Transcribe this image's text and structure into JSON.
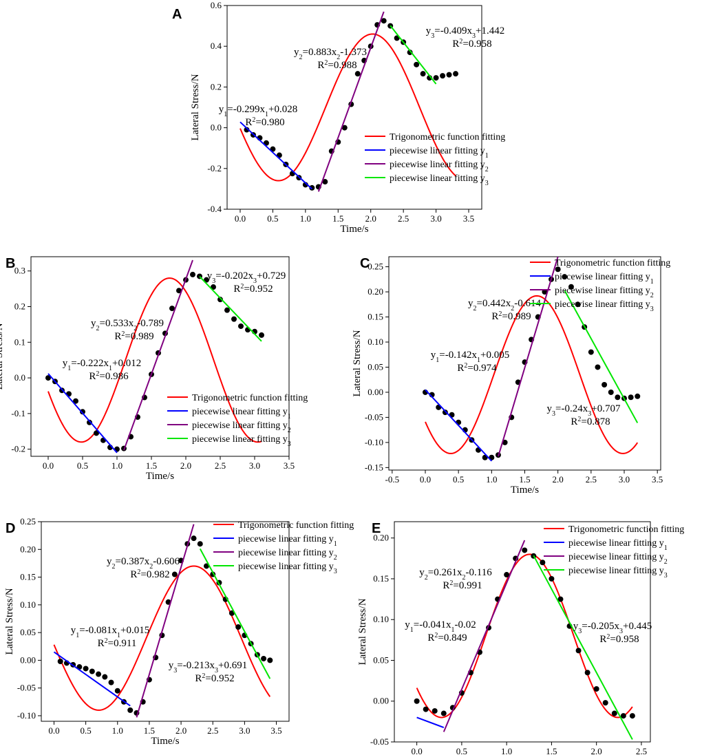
{
  "figure": {
    "x_axis_label": "Time/s",
    "y_axis_label": "Lateral Stress/N",
    "legend": {
      "trig": "Trigonometric function fitting",
      "y1": "piecewise linear fitting y",
      "y2": "piecewise linear fitting y",
      "y3": "piecewise linear fitting y",
      "y1_sub": "1",
      "y2_sub": "2",
      "y3_sub": "3"
    },
    "colors": {
      "trig": "#ff0000",
      "y1": "#0000ff",
      "y2": "#800080",
      "y3": "#00e600",
      "points": "#000000"
    }
  },
  "chart_data": [
    {
      "panel": "A",
      "type": "scatter",
      "xlim": [
        -0.2,
        3.7
      ],
      "ylim": [
        -0.4,
        0.6
      ],
      "xticks": [
        0.0,
        0.5,
        1.0,
        1.5,
        2.0,
        2.5,
        3.0,
        3.5
      ],
      "yticks": [
        -0.4,
        -0.2,
        0.0,
        0.2,
        0.4,
        0.6
      ],
      "legend_position": "right-middle",
      "x": [
        0.1,
        0.2,
        0.3,
        0.4,
        0.5,
        0.6,
        0.7,
        0.8,
        0.9,
        1.0,
        1.1,
        1.2,
        1.3,
        1.4,
        1.5,
        1.6,
        1.7,
        1.8,
        1.9,
        2.0,
        2.1,
        2.2,
        2.3,
        2.4,
        2.5,
        2.6,
        2.7,
        2.8,
        2.9,
        3.0,
        3.1,
        3.2,
        3.3
      ],
      "y": [
        -0.01,
        -0.035,
        -0.05,
        -0.075,
        -0.105,
        -0.135,
        -0.18,
        -0.225,
        -0.245,
        -0.28,
        -0.295,
        -0.29,
        -0.265,
        -0.115,
        -0.07,
        0.0,
        0.115,
        0.265,
        0.33,
        0.4,
        0.505,
        0.525,
        0.5,
        0.44,
        0.42,
        0.37,
        0.31,
        0.265,
        0.245,
        0.245,
        0.255,
        0.26,
        0.265
      ],
      "trig": {
        "A": 0.36,
        "w": 2.18,
        "phi": 2.85,
        "c": 0.1,
        "xmin": 0.0,
        "xmax": 3.3
      },
      "fits": [
        {
          "key": "y1",
          "slope": -0.299,
          "intercept": 0.028,
          "xmin": 0.0,
          "xmax": 1.1
        },
        {
          "key": "y2",
          "slope": 0.883,
          "intercept": -1.373,
          "xmin": 1.2,
          "xmax": 2.2
        },
        {
          "key": "y3",
          "slope": -0.409,
          "intercept": 1.442,
          "xmin": 2.3,
          "xmax": 3.0
        }
      ],
      "annotations": [
        {
          "id": "y1",
          "eq": "y1=-0.299x1+0.028",
          "r2": "R2=0.980"
        },
        {
          "id": "y2",
          "eq": "y2=0.883x2-1.373",
          "r2": "R2=0.988"
        },
        {
          "id": "y3",
          "eq": "y3=-0.409x3+1.442",
          "r2": "R2=0.958"
        }
      ]
    },
    {
      "panel": "B",
      "type": "scatter",
      "xlim": [
        -0.25,
        3.5
      ],
      "ylim": [
        -0.22,
        0.34
      ],
      "xticks": [
        0.0,
        0.5,
        1.0,
        1.5,
        2.0,
        2.5,
        3.0,
        3.5
      ],
      "yticks": [
        -0.2,
        -0.1,
        0.0,
        0.1,
        0.2,
        0.3
      ],
      "legend_position": "bottom-right",
      "x": [
        0.0,
        0.1,
        0.2,
        0.3,
        0.4,
        0.5,
        0.6,
        0.7,
        0.8,
        0.9,
        1.0,
        1.1,
        1.2,
        1.3,
        1.4,
        1.5,
        1.6,
        1.7,
        1.8,
        1.9,
        2.0,
        2.1,
        2.2,
        2.3,
        2.4,
        2.5,
        2.6,
        2.7,
        2.8,
        2.9,
        3.0,
        3.1
      ],
      "y": [
        0.0,
        -0.01,
        -0.035,
        -0.045,
        -0.065,
        -0.095,
        -0.125,
        -0.155,
        -0.175,
        -0.195,
        -0.2,
        -0.198,
        -0.165,
        -0.11,
        -0.055,
        0.01,
        0.07,
        0.125,
        0.195,
        0.245,
        0.275,
        0.29,
        0.285,
        0.275,
        0.255,
        0.22,
        0.19,
        0.165,
        0.145,
        0.135,
        0.13,
        0.12
      ],
      "trig": {
        "A": 0.23,
        "w": 2.45,
        "phi": 2.75,
        "c": 0.05,
        "xmin": 0.0,
        "xmax": 3.1
      },
      "fits": [
        {
          "key": "y1",
          "slope": -0.222,
          "intercept": 0.012,
          "xmin": 0.0,
          "xmax": 1.0
        },
        {
          "key": "y2",
          "slope": 0.533,
          "intercept": -0.789,
          "xmin": 1.1,
          "xmax": 2.1
        },
        {
          "key": "y3",
          "slope": -0.202,
          "intercept": 0.729,
          "xmin": 2.2,
          "xmax": 3.1
        }
      ],
      "annotations": [
        {
          "id": "y1",
          "eq": "y1=-0.222x1+0.012",
          "r2": "R2=0.986"
        },
        {
          "id": "y2",
          "eq": "y2=0.533x2-0.789",
          "r2": "R2=0.989"
        },
        {
          "id": "y3",
          "eq": "y3=-0.202x3+0.729",
          "r2": "R2=0.952"
        }
      ]
    },
    {
      "panel": "C",
      "type": "scatter",
      "xlim": [
        -0.55,
        3.55
      ],
      "ylim": [
        -0.155,
        0.27
      ],
      "xticks": [
        -0.5,
        0.0,
        0.5,
        1.0,
        1.5,
        2.0,
        2.5,
        3.0,
        3.5
      ],
      "yticks": [
        -0.15,
        -0.1,
        -0.05,
        0.0,
        0.05,
        0.1,
        0.15,
        0.2,
        0.25
      ],
      "legend_position": "top-right",
      "x": [
        0.0,
        0.1,
        0.2,
        0.3,
        0.4,
        0.5,
        0.6,
        0.7,
        0.8,
        0.9,
        1.0,
        1.1,
        1.2,
        1.3,
        1.4,
        1.5,
        1.6,
        1.7,
        1.8,
        1.9,
        2.0,
        2.1,
        2.2,
        2.3,
        2.4,
        2.5,
        2.6,
        2.7,
        2.8,
        2.9,
        3.0,
        3.1,
        3.2
      ],
      "y": [
        0.0,
        -0.005,
        -0.03,
        -0.04,
        -0.045,
        -0.06,
        -0.075,
        -0.095,
        -0.115,
        -0.13,
        -0.13,
        -0.125,
        -0.1,
        -0.05,
        0.02,
        0.06,
        0.105,
        0.15,
        0.2,
        0.225,
        0.245,
        0.23,
        0.21,
        0.175,
        0.13,
        0.08,
        0.05,
        0.015,
        0.0,
        -0.01,
        -0.012,
        -0.01,
        -0.008
      ],
      "trig": {
        "A": 0.157,
        "w": 2.42,
        "phi": 2.5,
        "c": 0.035,
        "xmin": 0.0,
        "xmax": 3.2
      },
      "fits": [
        {
          "key": "y1",
          "slope": -0.142,
          "intercept": 0.005,
          "xmin": 0.0,
          "xmax": 1.0
        },
        {
          "key": "y2",
          "slope": 0.442,
          "intercept": -0.614,
          "xmin": 1.1,
          "xmax": 2.0
        },
        {
          "key": "y3",
          "slope": -0.24,
          "intercept": 0.707,
          "xmin": 2.1,
          "xmax": 3.2
        }
      ],
      "annotations": [
        {
          "id": "y1",
          "eq": "y1=-0.142x1+0.005",
          "r2": "R2=0.974"
        },
        {
          "id": "y2",
          "eq": "y2=0.442x2-0.614",
          "r2": "R2=0.989"
        },
        {
          "id": "y3",
          "eq": "y3=-0.24x3+0.707",
          "r2": "R2=0.878"
        }
      ]
    },
    {
      "panel": "D",
      "type": "scatter",
      "xlim": [
        -0.2,
        3.7
      ],
      "ylim": [
        -0.11,
        0.25
      ],
      "xticks": [
        0.0,
        0.5,
        1.0,
        1.5,
        2.0,
        2.5,
        3.0,
        3.5
      ],
      "yticks": [
        -0.1,
        -0.05,
        0.0,
        0.05,
        0.1,
        0.15,
        0.2,
        0.25
      ],
      "legend_position": "top-right",
      "x": [
        0.1,
        0.2,
        0.3,
        0.4,
        0.5,
        0.6,
        0.7,
        0.8,
        0.9,
        1.0,
        1.1,
        1.2,
        1.3,
        1.4,
        1.5,
        1.6,
        1.7,
        1.8,
        1.9,
        2.0,
        2.1,
        2.2,
        2.3,
        2.4,
        2.5,
        2.6,
        2.7,
        2.8,
        2.9,
        3.0,
        3.1,
        3.2,
        3.3,
        3.4
      ],
      "y": [
        -0.002,
        -0.005,
        -0.008,
        -0.012,
        -0.015,
        -0.02,
        -0.025,
        -0.03,
        -0.04,
        -0.055,
        -0.075,
        -0.09,
        -0.095,
        -0.075,
        -0.035,
        0.005,
        0.045,
        0.105,
        0.155,
        0.18,
        0.21,
        0.22,
        0.21,
        0.17,
        0.155,
        0.14,
        0.11,
        0.085,
        0.06,
        0.045,
        0.03,
        0.01,
        0.003,
        0.0
      ],
      "trig": {
        "A": 0.13,
        "w": 2.1,
        "phi": 3.05,
        "c": 0.04,
        "xmin": 0.0,
        "xmax": 3.4
      },
      "fits": [
        {
          "key": "y1",
          "slope": -0.081,
          "intercept": 0.015,
          "xmin": 0.0,
          "xmax": 1.2
        },
        {
          "key": "y2",
          "slope": 0.387,
          "intercept": -0.606,
          "xmin": 1.3,
          "xmax": 2.2
        },
        {
          "key": "y3",
          "slope": -0.213,
          "intercept": 0.691,
          "xmin": 2.3,
          "xmax": 3.4
        }
      ],
      "annotations": [
        {
          "id": "y1",
          "eq": "y1=-0.081x1+0.015",
          "r2": "R2=0.911"
        },
        {
          "id": "y2",
          "eq": "y2=0.387x2-0.606",
          "r2": "R2=0.982"
        },
        {
          "id": "y3",
          "eq": "y3=-0.213x3+0.691",
          "r2": "R2=0.952"
        }
      ]
    },
    {
      "panel": "E",
      "type": "scatter",
      "xlim": [
        -0.25,
        2.6
      ],
      "ylim": [
        -0.05,
        0.22
      ],
      "xticks": [
        0.0,
        0.5,
        1.0,
        1.5,
        2.0,
        2.5
      ],
      "yticks": [
        -0.05,
        0.0,
        0.05,
        0.1,
        0.15,
        0.2
      ],
      "legend_position": "top-right",
      "x": [
        0.0,
        0.1,
        0.2,
        0.3,
        0.4,
        0.5,
        0.6,
        0.7,
        0.8,
        0.9,
        1.0,
        1.1,
        1.2,
        1.3,
        1.4,
        1.5,
        1.6,
        1.7,
        1.8,
        1.9,
        2.0,
        2.1,
        2.2,
        2.3,
        2.4
      ],
      "y": [
        0.0,
        -0.01,
        -0.012,
        -0.015,
        -0.008,
        0.01,
        0.035,
        0.06,
        0.09,
        0.125,
        0.155,
        0.175,
        0.185,
        0.178,
        0.17,
        0.15,
        0.125,
        0.092,
        0.062,
        0.035,
        0.015,
        -0.002,
        -0.015,
        -0.018,
        -0.018
      ],
      "trig": {
        "A": 0.1,
        "w": 3.2,
        "phi": 2.45,
        "c": 0.08,
        "xmin": 0.0,
        "xmax": 2.4
      },
      "fits": [
        {
          "key": "y1",
          "slope": -0.041,
          "intercept": -0.02,
          "xmin": 0.0,
          "xmax": 0.3
        },
        {
          "key": "y2",
          "slope": 0.261,
          "intercept": -0.116,
          "xmin": 0.3,
          "xmax": 1.2
        },
        {
          "key": "y3",
          "slope": -0.205,
          "intercept": 0.445,
          "xmin": 1.3,
          "xmax": 2.4
        }
      ],
      "annotations": [
        {
          "id": "y1",
          "eq": "y1=-0.041x1-0.02",
          "r2": "R2=0.849"
        },
        {
          "id": "y2",
          "eq": "y2=0.261x2-0.116",
          "r2": "R2=0.991"
        },
        {
          "id": "y3",
          "eq": "y3=-0.205x3+0.445",
          "r2": "R2=0.958"
        }
      ]
    }
  ]
}
